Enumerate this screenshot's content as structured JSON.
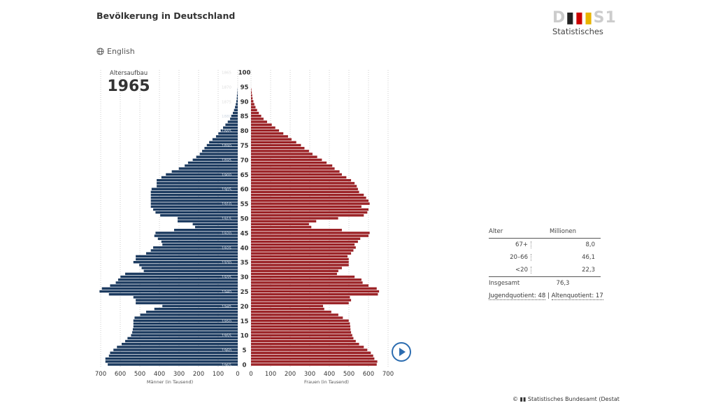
{
  "header": {
    "title": "Bevölkerung in Deutschland",
    "language_link": "English",
    "language_icon": "globe-icon"
  },
  "logo": {
    "mark": "DESTATIS",
    "subtitle": "Statistisches"
  },
  "colors": {
    "men": "#1b3a5f",
    "women": "#9b2226",
    "play": "#2b6cb0"
  },
  "chart_data": {
    "type": "bar",
    "subtype": "population-pyramid",
    "label": "Altersaufbau",
    "year": "1965",
    "age_axis": {
      "ticks": [
        0,
        5,
        10,
        15,
        20,
        25,
        30,
        35,
        40,
        45,
        50,
        55,
        60,
        65,
        70,
        75,
        80,
        85,
        90,
        95,
        100
      ],
      "range": [
        0,
        100
      ]
    },
    "birth_year_labels": [
      "1965",
      "1960",
      "1955",
      "1950",
      "1945",
      "1940",
      "1935",
      "1930",
      "1925",
      "1920",
      "1915",
      "1910",
      "1905",
      "1900",
      "1895",
      "1890",
      "1885",
      "1880",
      "1875",
      "1870",
      "1865"
    ],
    "x_ticks": [
      700,
      600,
      500,
      400,
      300,
      200,
      100,
      0
    ],
    "x_ticks_right": [
      0,
      100,
      200,
      300,
      400,
      500,
      600,
      700
    ],
    "xlim": [
      0,
      700
    ],
    "xlabel_left": "Männer (in Tausend)",
    "xlabel_right": "Frauen (in Tausend)",
    "grid": true,
    "ages": [
      0,
      1,
      2,
      3,
      4,
      5,
      6,
      7,
      8,
      9,
      10,
      11,
      12,
      13,
      14,
      15,
      16,
      17,
      18,
      19,
      20,
      21,
      22,
      23,
      24,
      25,
      26,
      27,
      28,
      29,
      30,
      31,
      32,
      33,
      34,
      35,
      36,
      37,
      38,
      39,
      40,
      41,
      42,
      43,
      44,
      45,
      46,
      47,
      48,
      49,
      50,
      51,
      52,
      53,
      54,
      55,
      56,
      57,
      58,
      59,
      60,
      61,
      62,
      63,
      64,
      65,
      66,
      67,
      68,
      69,
      70,
      71,
      72,
      73,
      74,
      75,
      76,
      77,
      78,
      79,
      80,
      81,
      82,
      83,
      84,
      85,
      86,
      87,
      88,
      89,
      90,
      91,
      92,
      93,
      94
    ],
    "series": [
      {
        "name": "Männer",
        "values": [
          664,
          676,
          676,
          658,
          652,
          635,
          617,
          593,
          575,
          563,
          545,
          539,
          536,
          533,
          533,
          533,
          527,
          498,
          468,
          426,
          385,
          521,
          521,
          533,
          658,
          706,
          694,
          652,
          623,
          611,
          599,
          575,
          480,
          491,
          503,
          533,
          521,
          521,
          468,
          444,
          432,
          385,
          390,
          408,
          426,
          420,
          325,
          218,
          230,
          307,
          307,
          396,
          420,
          432,
          444,
          444,
          444,
          444,
          444,
          444,
          440,
          414,
          414,
          414,
          390,
          367,
          337,
          301,
          271,
          254,
          230,
          212,
          194,
          182,
          170,
          158,
          146,
          129,
          111,
          99,
          87,
          75,
          63,
          51,
          39,
          33,
          25,
          19,
          14,
          10,
          7,
          5,
          4,
          2,
          1
        ]
      },
      {
        "name": "Frauen",
        "values": [
          642,
          645,
          630,
          624,
          612,
          594,
          576,
          552,
          535,
          523,
          517,
          511,
          508,
          507,
          505,
          499,
          469,
          446,
          410,
          374,
          368,
          499,
          511,
          505,
          648,
          654,
          642,
          600,
          570,
          564,
          529,
          439,
          446,
          464,
          499,
          499,
          499,
          493,
          511,
          523,
          535,
          529,
          546,
          558,
          600,
          606,
          464,
          308,
          296,
          333,
          445,
          576,
          594,
          600,
          564,
          606,
          600,
          588,
          576,
          552,
          546,
          540,
          529,
          511,
          487,
          464,
          452,
          427,
          415,
          386,
          362,
          338,
          314,
          296,
          273,
          255,
          231,
          207,
          189,
          165,
          143,
          124,
          106,
          82,
          64,
          52,
          40,
          31,
          23,
          17,
          12,
          8,
          6,
          4,
          2
        ]
      }
    ]
  },
  "summary_table": {
    "headers": [
      "Alter",
      "Millionen"
    ],
    "rows": [
      {
        "age": "67+",
        "value": "8,0"
      },
      {
        "age": "20–66",
        "value": "46,1"
      },
      {
        "age": "<20",
        "value": "22,3"
      }
    ],
    "total": {
      "label": "Insgesamt",
      "value": "76,3"
    }
  },
  "quotients": {
    "youth": "Jugendquotient: 48",
    "separator": "|",
    "old": "Altenquotient: 17"
  },
  "controls": {
    "play_icon": "play-icon"
  },
  "footer": {
    "text": "© ▮▮ Statistisches Bundesamt (Destat"
  }
}
